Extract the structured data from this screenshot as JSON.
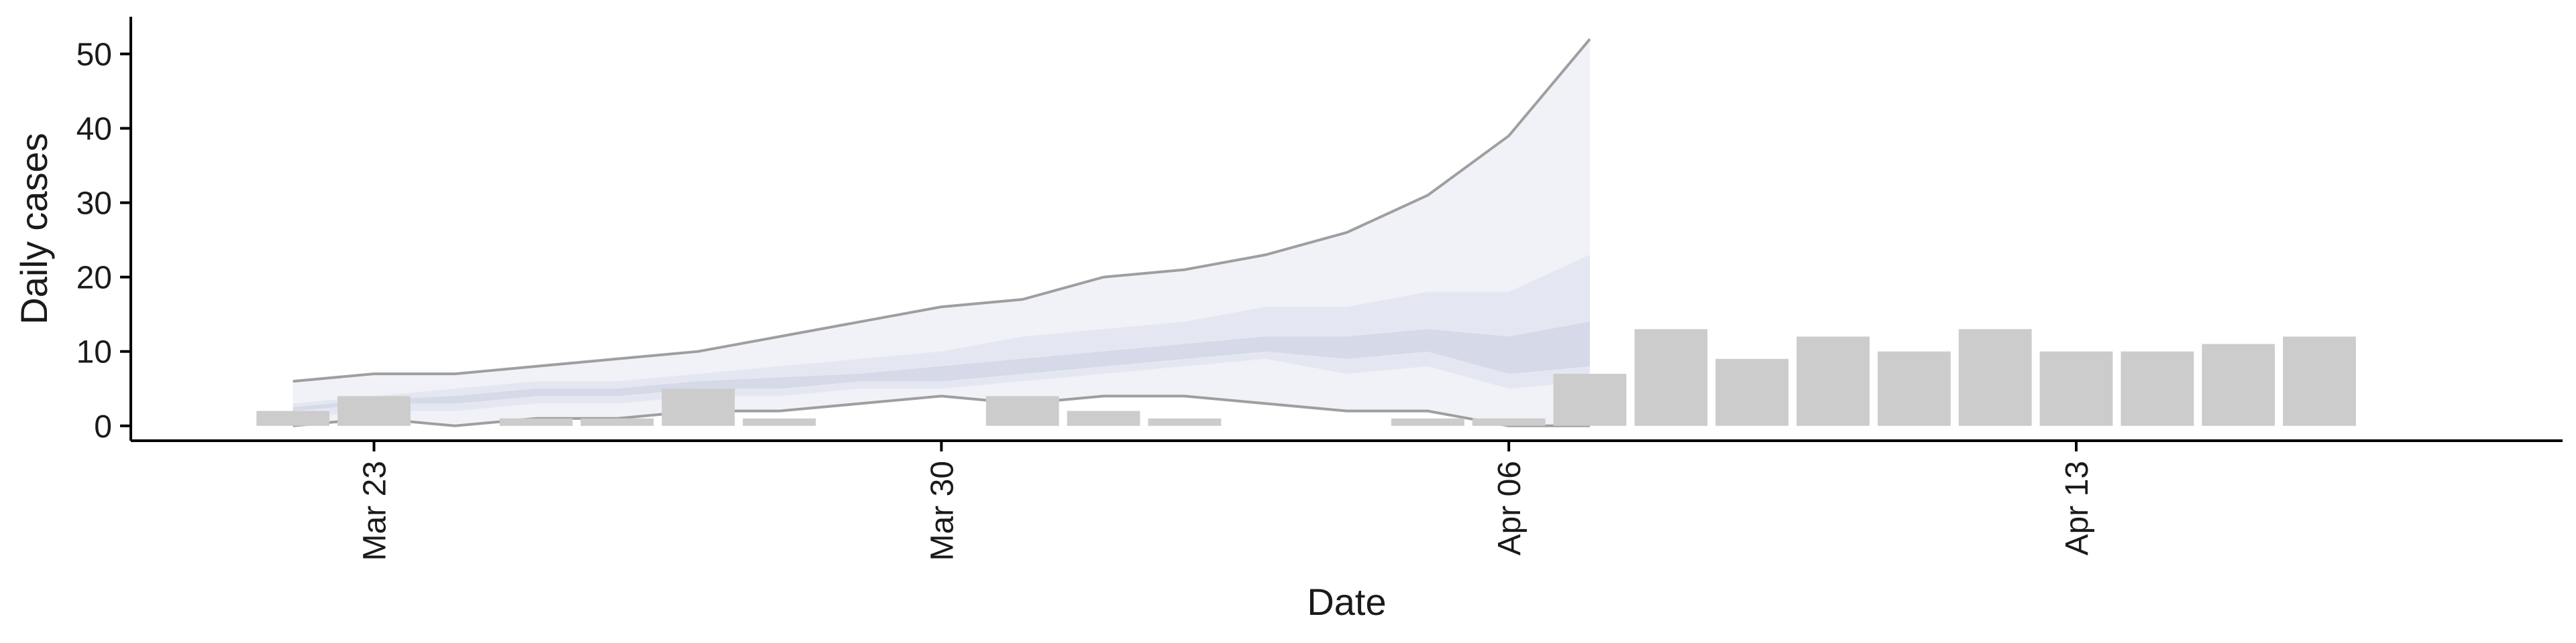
{
  "chart_data": {
    "type": "bar",
    "xlabel": "Date",
    "ylabel": "Daily cases",
    "ylim": [
      -2,
      55
    ],
    "yticks": [
      0,
      10,
      20,
      30,
      40,
      50
    ],
    "x_ticks": [
      {
        "date": "2020-03-23",
        "label": "Mar 23"
      },
      {
        "date": "2020-03-30",
        "label": "Mar 30"
      },
      {
        "date": "2020-04-06",
        "label": "Apr 06"
      },
      {
        "date": "2020-04-13",
        "label": "Apr 13"
      }
    ],
    "xlim": [
      "2020-03-20",
      "2020-04-19"
    ],
    "grid": false,
    "colors": {
      "bar": "#cccccc",
      "ribbon_outer": "#eef0f6",
      "ribbon_mid": "#e2e5ef",
      "ribbon_inner": "#c8cde0",
      "ribbon_line": "#808080"
    },
    "bars": [
      {
        "date": "2020-03-22",
        "value": 2
      },
      {
        "date": "2020-03-23",
        "value": 4
      },
      {
        "date": "2020-03-24",
        "value": 0
      },
      {
        "date": "2020-03-25",
        "value": 1
      },
      {
        "date": "2020-03-26",
        "value": 1
      },
      {
        "date": "2020-03-27",
        "value": 5
      },
      {
        "date": "2020-03-28",
        "value": 1
      },
      {
        "date": "2020-03-29",
        "value": 0
      },
      {
        "date": "2020-03-30",
        "value": 0
      },
      {
        "date": "2020-03-31",
        "value": 4
      },
      {
        "date": "2020-04-01",
        "value": 2
      },
      {
        "date": "2020-04-02",
        "value": 1
      },
      {
        "date": "2020-04-03",
        "value": 0
      },
      {
        "date": "2020-04-04",
        "value": 0
      },
      {
        "date": "2020-04-05",
        "value": 1
      },
      {
        "date": "2020-04-06",
        "value": 1
      },
      {
        "date": "2020-04-07",
        "value": 7
      },
      {
        "date": "2020-04-08",
        "value": 13
      },
      {
        "date": "2020-04-09",
        "value": 9
      },
      {
        "date": "2020-04-10",
        "value": 12
      },
      {
        "date": "2020-04-11",
        "value": 10
      },
      {
        "date": "2020-04-12",
        "value": 13
      },
      {
        "date": "2020-04-13",
        "value": 10
      },
      {
        "date": "2020-04-14",
        "value": 10
      },
      {
        "date": "2020-04-15",
        "value": 11
      },
      {
        "date": "2020-04-16",
        "value": 12
      }
    ],
    "bands": {
      "dates": [
        "2020-03-22",
        "2020-03-23",
        "2020-03-24",
        "2020-03-25",
        "2020-03-26",
        "2020-03-27",
        "2020-03-28",
        "2020-03-29",
        "2020-03-30",
        "2020-03-31",
        "2020-04-01",
        "2020-04-02",
        "2020-04-03",
        "2020-04-04",
        "2020-04-05",
        "2020-04-06",
        "2020-04-07"
      ],
      "outer_lower": [
        0,
        1,
        0,
        1,
        1,
        2,
        2,
        3,
        4,
        3,
        4,
        4,
        3,
        2,
        2,
        0,
        0
      ],
      "outer_upper": [
        6,
        7,
        7,
        8,
        9,
        10,
        12,
        14,
        16,
        17,
        20,
        21,
        23,
        26,
        31,
        39,
        52
      ],
      "mid_lower": [
        1,
        2,
        2,
        3,
        3,
        4,
        4,
        5,
        5,
        6,
        7,
        8,
        9,
        7,
        8,
        5,
        6
      ],
      "mid_upper": [
        3,
        4,
        5,
        6,
        6,
        7,
        8,
        9,
        10,
        12,
        13,
        14,
        16,
        16,
        18,
        18,
        23
      ],
      "inner_lower": [
        2,
        3,
        3,
        4,
        4,
        5,
        5,
        6,
        6,
        7,
        8,
        9,
        10,
        9,
        10,
        7,
        8
      ],
      "inner_upper": [
        2.5,
        3.5,
        4,
        5,
        5,
        6,
        6.5,
        7,
        8,
        9,
        10,
        11,
        12,
        12,
        13,
        12,
        14
      ]
    }
  }
}
